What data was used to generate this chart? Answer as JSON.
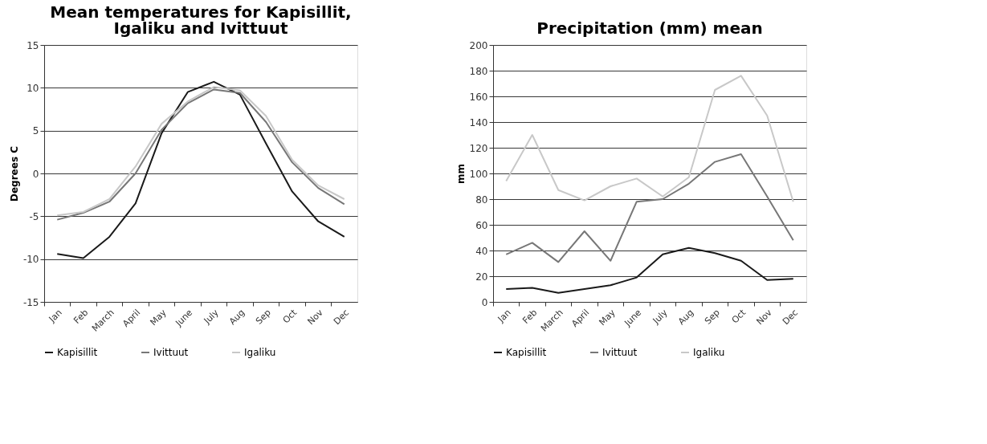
{
  "chart_data": [
    {
      "type": "line",
      "title": "Mean temperatures for Kapisillit,\nIgaliku and Ivittuut",
      "ylabel": "Degrees C",
      "categories": [
        "Jan",
        "Feb",
        "March",
        "April",
        "May",
        "June",
        "July",
        "Aug",
        "Sep",
        "Oct",
        "Nov",
        "Dec"
      ],
      "ylim": [
        -15,
        15
      ],
      "yticks": [
        -15,
        -10,
        -5,
        0,
        5,
        10,
        15
      ],
      "grid": "y",
      "legend": "bottom",
      "marker": "none",
      "line_style": "solid",
      "series": [
        {
          "name": "Kapisillit",
          "color": "#1a1a1a",
          "values": [
            -9.4,
            -9.9,
            -7.4,
            -3.5,
            4.7,
            9.5,
            10.7,
            9.2,
            3.5,
            -2.1,
            -5.6,
            -7.4
          ]
        },
        {
          "name": "Ivittuut",
          "color": "#777777",
          "values": [
            -5.4,
            -4.6,
            -3.3,
            0,
            5.1,
            8.2,
            9.8,
            9.4,
            6.0,
            1.3,
            -1.7,
            -3.6
          ]
        },
        {
          "name": "Igaliku",
          "color": "#c8c8c8",
          "values": [
            -4.9,
            -4.5,
            -3.0,
            0.8,
            5.8,
            8.4,
            10.1,
            9.7,
            6.7,
            1.6,
            -1.4,
            -3.0
          ]
        }
      ]
    },
    {
      "type": "line",
      "title": "Precipitation (mm) mean",
      "ylabel": "mm",
      "categories": [
        "Jan",
        "Feb",
        "March",
        "April",
        "May",
        "June",
        "July",
        "Aug",
        "Sep",
        "Oct",
        "Nov",
        "Dec"
      ],
      "ylim": [
        0,
        200
      ],
      "yticks": [
        0,
        20,
        40,
        60,
        80,
        100,
        120,
        140,
        160,
        180,
        200
      ],
      "grid": "y",
      "legend": "bottom",
      "marker": "none",
      "line_style": "solid",
      "series": [
        {
          "name": "Kapisillit",
          "color": "#1a1a1a",
          "values": [
            10,
            11,
            7,
            10,
            13,
            19,
            37,
            42,
            38,
            32,
            17,
            18
          ]
        },
        {
          "name": "Ivittuut",
          "color": "#777777",
          "values": [
            37,
            46,
            31,
            55,
            32,
            78,
            80,
            92,
            109,
            115,
            82,
            48
          ]
        },
        {
          "name": "Igaliku",
          "color": "#c8c8c8",
          "values": [
            94,
            130,
            87,
            79,
            90,
            96,
            82,
            97,
            165,
            176,
            145,
            78
          ]
        }
      ]
    }
  ]
}
